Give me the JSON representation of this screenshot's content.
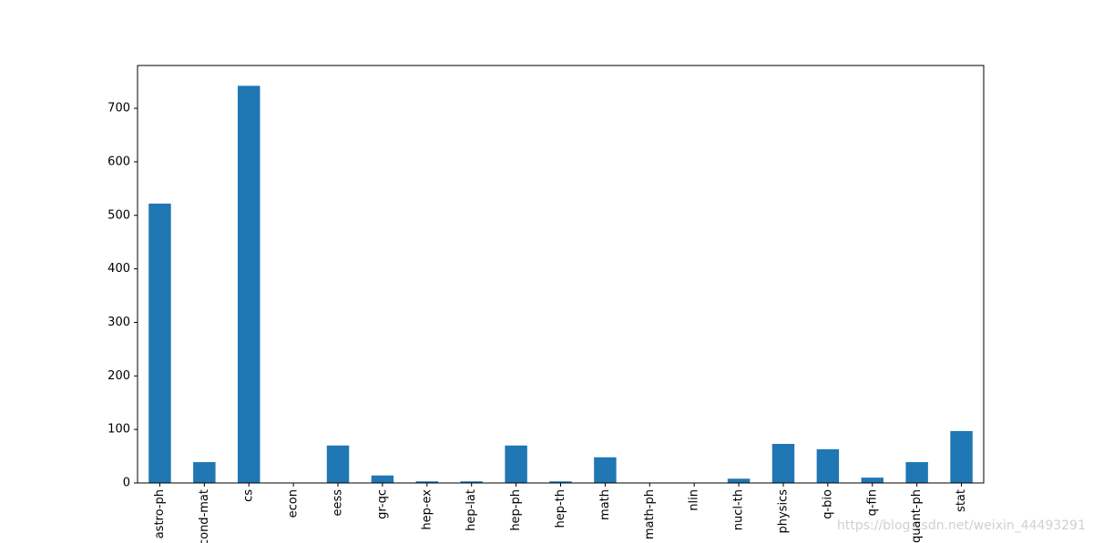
{
  "chart_data": {
    "type": "bar",
    "categories": [
      "astro-ph",
      "cond-mat",
      "cs",
      "econ",
      "eess",
      "gr-qc",
      "hep-ex",
      "hep-lat",
      "hep-ph",
      "hep-th",
      "math",
      "math-ph",
      "nlin",
      "nucl-th",
      "physics",
      "q-bio",
      "q-fin",
      "quant-ph",
      "stat"
    ],
    "values": [
      522,
      39,
      742,
      0,
      70,
      14,
      3,
      3,
      70,
      3,
      48,
      0,
      0,
      8,
      73,
      63,
      10,
      39,
      97
    ],
    "color": "#1f77b4",
    "ylim": [
      0,
      780
    ],
    "yticks": [
      0,
      100,
      200,
      300,
      400,
      500,
      600,
      700
    ],
    "grid": false,
    "watermark": "https://blog.csdn.net/weixin_44493291"
  }
}
